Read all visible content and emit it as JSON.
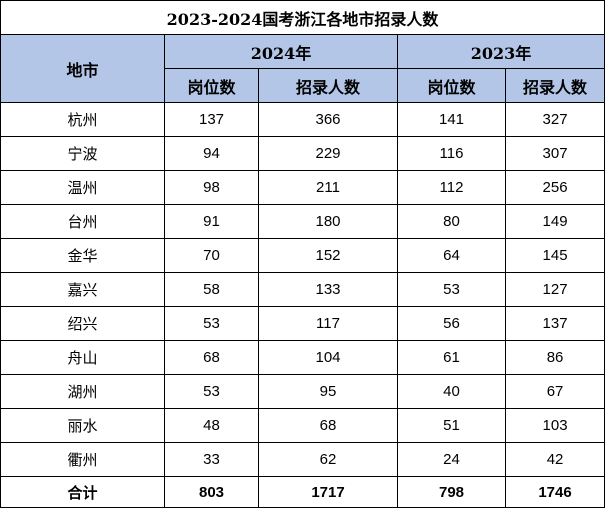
{
  "title": "2023-2024国考浙江各地市招录人数",
  "header": {
    "region": "地市",
    "year_2024": "2024年",
    "year_2023": "2023年",
    "positions": "岗位数",
    "recruits": "招录人数"
  },
  "rows": [
    {
      "city": "杭州",
      "pos_2024": "137",
      "rec_2024": "366",
      "pos_2023": "141",
      "rec_2023": "327"
    },
    {
      "city": "宁波",
      "pos_2024": "94",
      "rec_2024": "229",
      "pos_2023": "116",
      "rec_2023": "307"
    },
    {
      "city": "温州",
      "pos_2024": "98",
      "rec_2024": "211",
      "pos_2023": "112",
      "rec_2023": "256"
    },
    {
      "city": "台州",
      "pos_2024": "91",
      "rec_2024": "180",
      "pos_2023": "80",
      "rec_2023": "149"
    },
    {
      "city": "金华",
      "pos_2024": "70",
      "rec_2024": "152",
      "pos_2023": "64",
      "rec_2023": "145"
    },
    {
      "city": "嘉兴",
      "pos_2024": "58",
      "rec_2024": "133",
      "pos_2023": "53",
      "rec_2023": "127"
    },
    {
      "city": "绍兴",
      "pos_2024": "53",
      "rec_2024": "117",
      "pos_2023": "56",
      "rec_2023": "137"
    },
    {
      "city": "舟山",
      "pos_2024": "68",
      "rec_2024": "104",
      "pos_2023": "61",
      "rec_2023": "86"
    },
    {
      "city": "湖州",
      "pos_2024": "53",
      "rec_2024": "95",
      "pos_2023": "40",
      "rec_2023": "67"
    },
    {
      "city": "丽水",
      "pos_2024": "48",
      "rec_2024": "68",
      "pos_2023": "51",
      "rec_2023": "103"
    },
    {
      "city": "衢州",
      "pos_2024": "33",
      "rec_2024": "62",
      "pos_2023": "24",
      "rec_2023": "42"
    }
  ],
  "total": {
    "label": "合计",
    "pos_2024": "803",
    "rec_2024": "1717",
    "pos_2023": "798",
    "rec_2023": "1746"
  },
  "colors": {
    "header_bg": "#b4c6e7",
    "border": "#000000"
  }
}
